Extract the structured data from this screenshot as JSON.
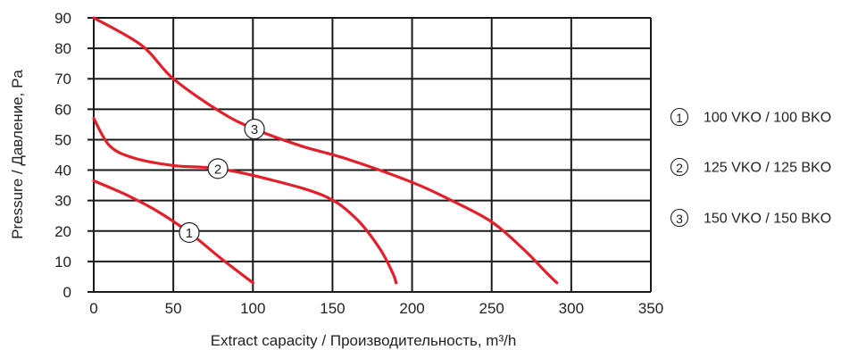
{
  "chart_data": {
    "type": "line",
    "xlabel": "Extract capacity / Производительность, m³/h",
    "ylabel": "Pressure / Давление, Pa",
    "xlim": [
      0,
      350
    ],
    "ylim": [
      0,
      90
    ],
    "xticks": [
      0,
      50,
      100,
      150,
      200,
      250,
      300,
      350
    ],
    "yticks": [
      0,
      10,
      20,
      30,
      40,
      50,
      60,
      70,
      80,
      90
    ],
    "grid": true,
    "color": "#e0202b",
    "series": [
      {
        "name": "100 VKO / 100 BKO",
        "marker_label": "1",
        "marker_at": [
          60,
          19.5
        ],
        "points": [
          [
            0,
            36.5
          ],
          [
            20,
            32
          ],
          [
            40,
            26.5
          ],
          [
            60,
            19.5
          ],
          [
            80,
            11
          ],
          [
            100,
            3
          ]
        ]
      },
      {
        "name": "125 VKO / 125 BKO",
        "marker_label": "2",
        "marker_at": [
          78,
          40.5
        ],
        "points": [
          [
            0,
            57
          ],
          [
            10,
            48
          ],
          [
            25,
            44
          ],
          [
            50,
            41.5
          ],
          [
            78,
            40.5
          ],
          [
            110,
            37
          ],
          [
            145,
            31.5
          ],
          [
            165,
            24
          ],
          [
            180,
            14
          ],
          [
            188,
            6
          ],
          [
            190,
            3
          ]
        ]
      },
      {
        "name": "150 VKO / 150 BKO",
        "marker_label": "3",
        "marker_at": [
          101,
          53.5
        ],
        "points": [
          [
            0,
            90
          ],
          [
            30,
            81
          ],
          [
            50,
            70
          ],
          [
            80,
            59
          ],
          [
            101,
            53.5
          ],
          [
            130,
            48
          ],
          [
            160,
            43.5
          ],
          [
            200,
            36
          ],
          [
            225,
            30
          ],
          [
            250,
            23
          ],
          [
            270,
            14
          ],
          [
            285,
            6
          ],
          [
            291,
            3
          ]
        ]
      }
    ]
  }
}
